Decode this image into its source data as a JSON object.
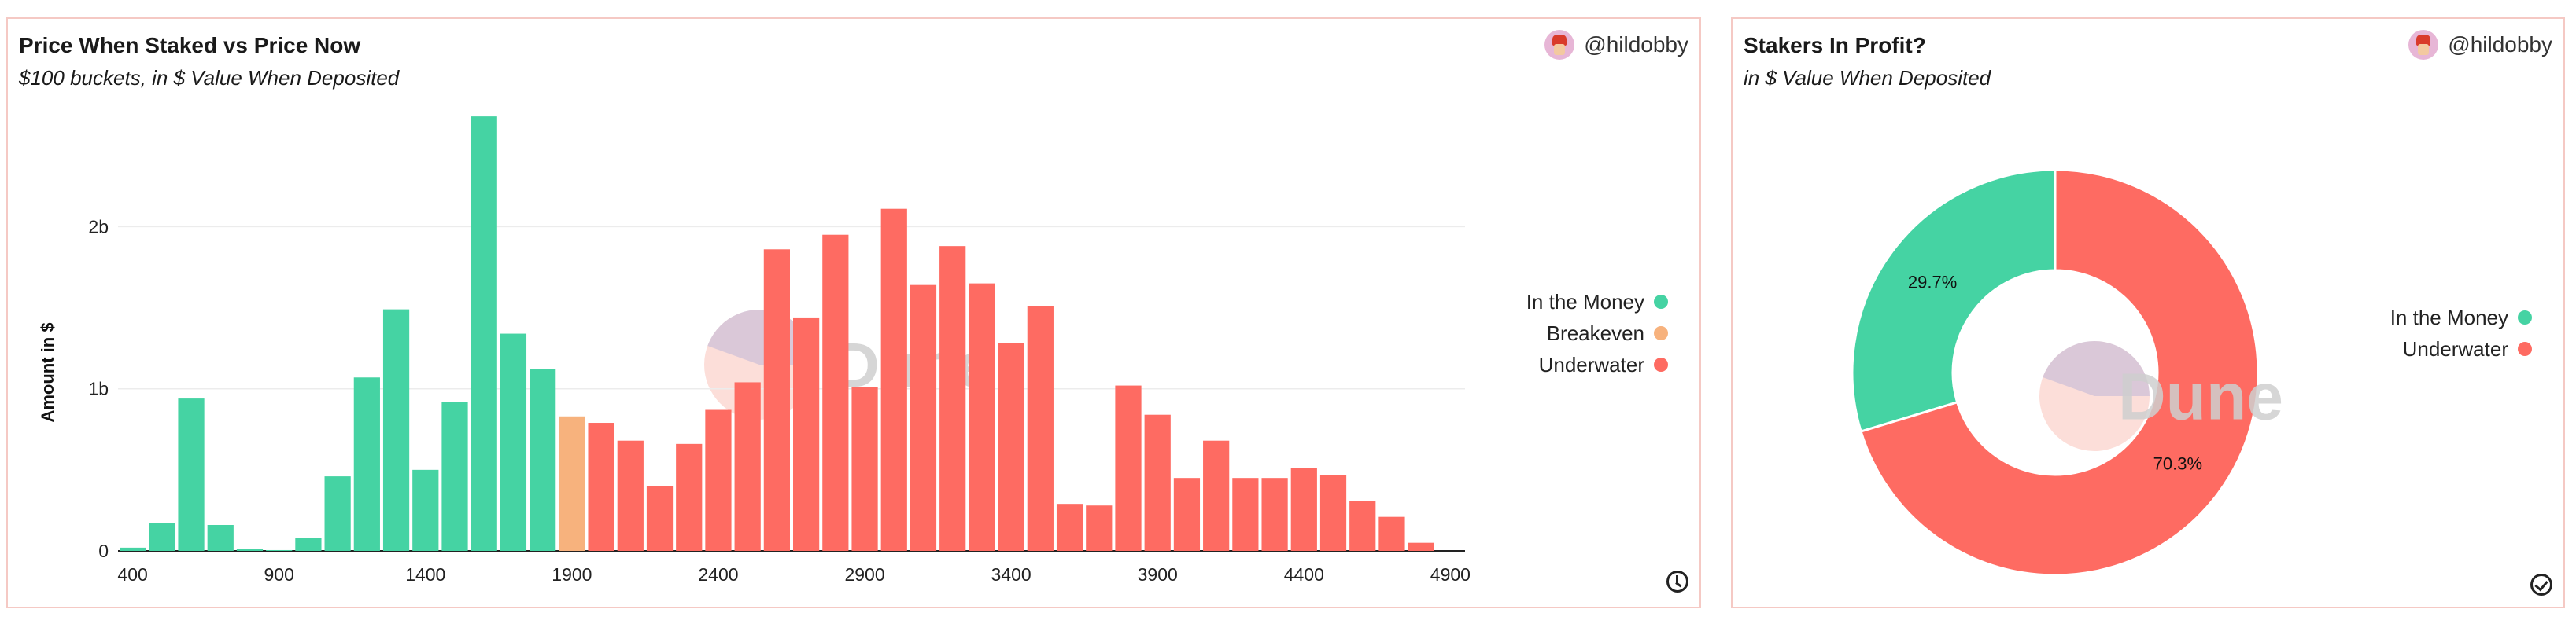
{
  "histogram": {
    "title": "Price When Staked vs Price Now",
    "subtitle": "$100 buckets, in $ Value When Deposited",
    "author": "@hildobby",
    "legend": [
      {
        "label": "In the Money",
        "color": "#45d3a3"
      },
      {
        "label": "Breakeven",
        "color": "#f7b27d"
      },
      {
        "label": "Underwater",
        "color": "#fe6b62"
      }
    ]
  },
  "donut": {
    "title": "Stakers In Profit?",
    "subtitle": "in $ Value When Deposited",
    "author": "@hildobby",
    "legend": [
      {
        "label": "In the Money",
        "color": "#45d3a3"
      },
      {
        "label": "Underwater",
        "color": "#fe6b62"
      }
    ]
  },
  "watermark": "Dune",
  "icons": {
    "left_corner": "clock-icon",
    "right_corner": "check-circle-icon",
    "avatar": "avatar-icon"
  },
  "chart_data": [
    {
      "type": "bar",
      "title": "Price When Staked vs Price Now",
      "subtitle": "$100 buckets, in $ Value When Deposited",
      "xlabel": "",
      "ylabel": "Amount in $",
      "xlim": [
        350,
        4950
      ],
      "ylim": [
        0,
        2700000000
      ],
      "x_ticks": [
        400,
        900,
        1400,
        1900,
        2400,
        2900,
        3400,
        3900,
        4400,
        4900
      ],
      "x_tick_labels": [
        "400",
        "900",
        "1400",
        "1900",
        "2400",
        "2900",
        "3400",
        "3900",
        "4400",
        "4900"
      ],
      "y_ticks": [
        0,
        1000000000,
        2000000000
      ],
      "y_tick_labels": [
        "0",
        "1b",
        "2b"
      ],
      "grid": true,
      "legend_position": "right",
      "series": [
        {
          "name": "In the Money",
          "color": "#45d3a3",
          "x": [
            400,
            500,
            600,
            700,
            800,
            900,
            1000,
            1100,
            1200,
            1300,
            1400,
            1500,
            1600,
            1700,
            1800
          ],
          "values": [
            20000000,
            170000000,
            940000000,
            160000000,
            10000000,
            5000000,
            80000000,
            460000000,
            1070000000,
            1490000000,
            500000000,
            920000000,
            2680000000,
            1340000000,
            1120000000
          ]
        },
        {
          "name": "Breakeven",
          "color": "#f7b27d",
          "x": [
            1900
          ],
          "values": [
            830000000
          ]
        },
        {
          "name": "Underwater",
          "color": "#fe6b62",
          "x": [
            2000,
            2100,
            2200,
            2300,
            2400,
            2500,
            2600,
            2700,
            2800,
            2900,
            3000,
            3100,
            3200,
            3300,
            3400,
            3500,
            3600,
            3700,
            3800,
            3900,
            4000,
            4100,
            4200,
            4300,
            4400,
            4500,
            4600,
            4700
          ],
          "values": [
            790000000,
            680000000,
            400000000,
            660000000,
            870000000,
            1040000000,
            1860000000,
            1440000000,
            1950000000,
            1010000000,
            2110000000,
            1640000000,
            1880000000,
            1650000000,
            1280000000,
            1510000000,
            290000000,
            280000000,
            1020000000,
            840000000,
            450000000,
            680000000,
            450000000,
            450000000,
            510000000,
            470000000,
            310000000,
            210000000
          ]
        },
        {
          "name": "Underwater",
          "color": "#fe6b62",
          "x": [
            4800
          ],
          "values": [
            50000000
          ]
        }
      ]
    },
    {
      "type": "pie",
      "title": "Stakers In Profit?",
      "subtitle": "in $ Value When Deposited",
      "donut": true,
      "legend_position": "right",
      "slices": [
        {
          "label": "In the Money",
          "value": 29.7,
          "display": "29.7%",
          "color": "#45d3a3"
        },
        {
          "label": "Underwater",
          "value": 70.3,
          "display": "70.3%",
          "color": "#fe6b62"
        }
      ]
    }
  ]
}
